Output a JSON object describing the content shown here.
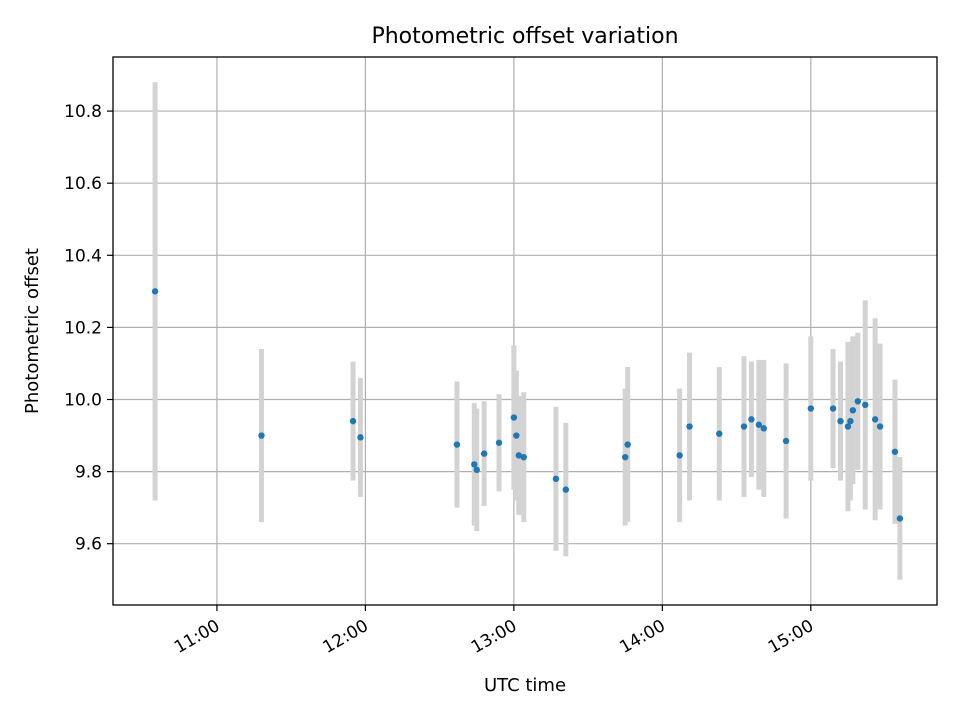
{
  "chart_data": {
    "type": "scatter",
    "title": "Photometric offset variation",
    "xlabel": "UTC time",
    "ylabel": "Photometric offset",
    "x_unit": "hour-of-day",
    "xlim": [
      10.3,
      15.85
    ],
    "ylim": [
      9.43,
      10.95
    ],
    "x_ticks": [
      {
        "value": 11,
        "label": "11:00"
      },
      {
        "value": 12,
        "label": "12:00"
      },
      {
        "value": 13,
        "label": "13:00"
      },
      {
        "value": 14,
        "label": "14:00"
      },
      {
        "value": 15,
        "label": "15:00"
      }
    ],
    "y_ticks": [
      {
        "value": 9.6,
        "label": "9.6"
      },
      {
        "value": 9.8,
        "label": "9.8"
      },
      {
        "value": 10.0,
        "label": "10.0"
      },
      {
        "value": 10.2,
        "label": "10.2"
      },
      {
        "value": 10.4,
        "label": "10.4"
      },
      {
        "value": 10.6,
        "label": "10.6"
      },
      {
        "value": 10.8,
        "label": "10.8"
      }
    ],
    "grid": true,
    "marker_color": "#1f77b4",
    "errorbar_color": "#d3d3d3",
    "points": [
      {
        "time": "10:35",
        "y": 10.3,
        "err": 0.58
      },
      {
        "time": "11:18",
        "y": 9.9,
        "err": 0.24
      },
      {
        "time": "11:55",
        "y": 9.94,
        "err": 0.165
      },
      {
        "time": "11:58",
        "y": 9.895,
        "err": 0.165
      },
      {
        "time": "12:37",
        "y": 9.875,
        "err": 0.175
      },
      {
        "time": "12:44",
        "y": 9.82,
        "err": 0.17
      },
      {
        "time": "12:45",
        "y": 9.805,
        "err": 0.17
      },
      {
        "time": "12:48",
        "y": 9.85,
        "err": 0.145
      },
      {
        "time": "12:54",
        "y": 9.88,
        "err": 0.135
      },
      {
        "time": "13:00",
        "y": 9.95,
        "err": 0.2
      },
      {
        "time": "13:01",
        "y": 9.9,
        "err": 0.18
      },
      {
        "time": "13:02",
        "y": 9.845,
        "err": 0.165
      },
      {
        "time": "13:04",
        "y": 9.84,
        "err": 0.18
      },
      {
        "time": "13:17",
        "y": 9.78,
        "err": 0.2
      },
      {
        "time": "13:21",
        "y": 9.75,
        "err": 0.185
      },
      {
        "time": "13:45",
        "y": 9.84,
        "err": 0.19
      },
      {
        "time": "13:46",
        "y": 9.875,
        "err": 0.215
      },
      {
        "time": "14:07",
        "y": 9.845,
        "err": 0.185
      },
      {
        "time": "14:11",
        "y": 9.925,
        "err": 0.205
      },
      {
        "time": "14:23",
        "y": 9.905,
        "err": 0.185
      },
      {
        "time": "14:33",
        "y": 9.925,
        "err": 0.195
      },
      {
        "time": "14:36",
        "y": 9.945,
        "err": 0.16
      },
      {
        "time": "14:39",
        "y": 9.93,
        "err": 0.18
      },
      {
        "time": "14:41",
        "y": 9.92,
        "err": 0.19
      },
      {
        "time": "14:50",
        "y": 9.885,
        "err": 0.215
      },
      {
        "time": "15:00",
        "y": 9.975,
        "err": 0.2
      },
      {
        "time": "15:09",
        "y": 9.975,
        "err": 0.165
      },
      {
        "time": "15:12",
        "y": 9.94,
        "err": 0.165
      },
      {
        "time": "15:15",
        "y": 9.925,
        "err": 0.235
      },
      {
        "time": "15:16",
        "y": 9.94,
        "err": 0.22
      },
      {
        "time": "15:17",
        "y": 9.97,
        "err": 0.205
      },
      {
        "time": "15:19",
        "y": 9.995,
        "err": 0.19
      },
      {
        "time": "15:22",
        "y": 9.985,
        "err": 0.29
      },
      {
        "time": "15:26",
        "y": 9.945,
        "err": 0.28
      },
      {
        "time": "15:28",
        "y": 9.925,
        "err": 0.23
      },
      {
        "time": "15:34",
        "y": 9.855,
        "err": 0.2
      },
      {
        "time": "15:36",
        "y": 9.67,
        "err": 0.17
      }
    ]
  }
}
